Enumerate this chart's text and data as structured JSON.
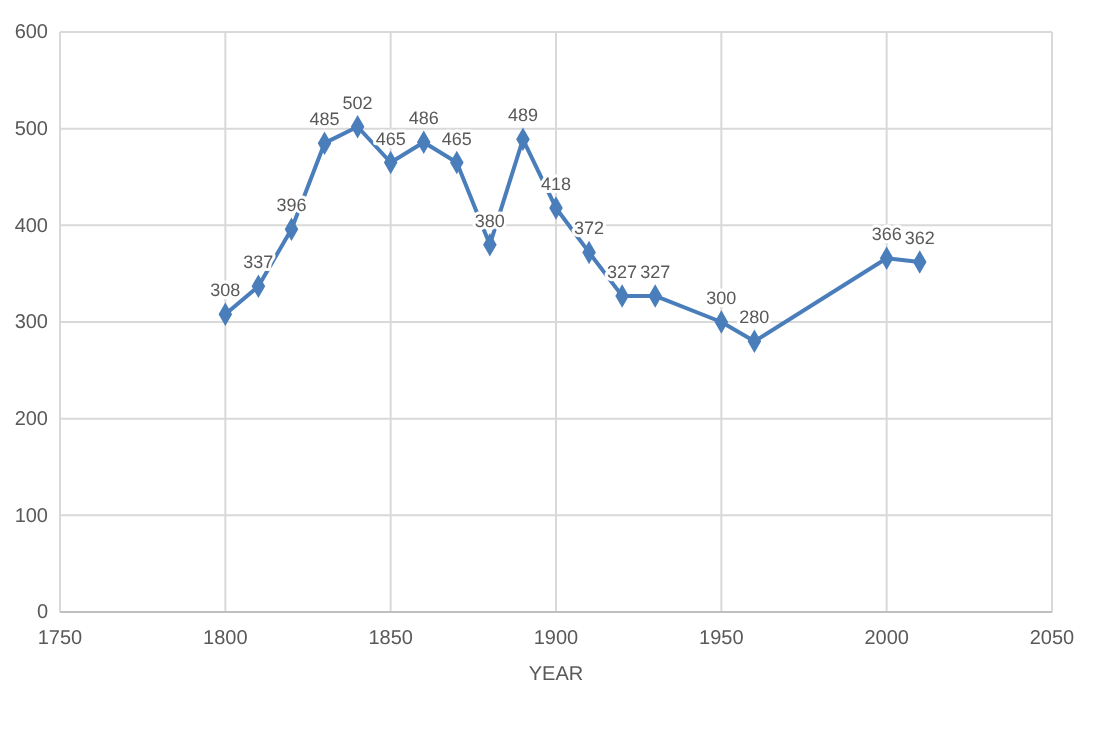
{
  "chart_data": {
    "type": "line",
    "xlabel": "YEAR",
    "x": [
      1800,
      1810,
      1820,
      1830,
      1840,
      1850,
      1860,
      1870,
      1880,
      1890,
      1900,
      1910,
      1920,
      1930,
      1950,
      1960,
      2000,
      2010
    ],
    "series": [
      {
        "color": "#4a7ebb",
        "values": [
          308,
          337,
          396,
          485,
          502,
          465,
          486,
          465,
          380,
          489,
          418,
          372,
          327,
          327,
          300,
          280,
          366,
          362
        ]
      }
    ],
    "xlim": [
      1750,
      2050
    ],
    "xticks": [
      1750,
      1800,
      1850,
      1900,
      1950,
      2000,
      2050
    ],
    "ylim": [
      0,
      600
    ],
    "yticks": [
      0,
      100,
      200,
      300,
      400,
      500,
      600
    ],
    "grid": true,
    "marker": "diamond",
    "line_style": "solid",
    "data_labels": true
  }
}
